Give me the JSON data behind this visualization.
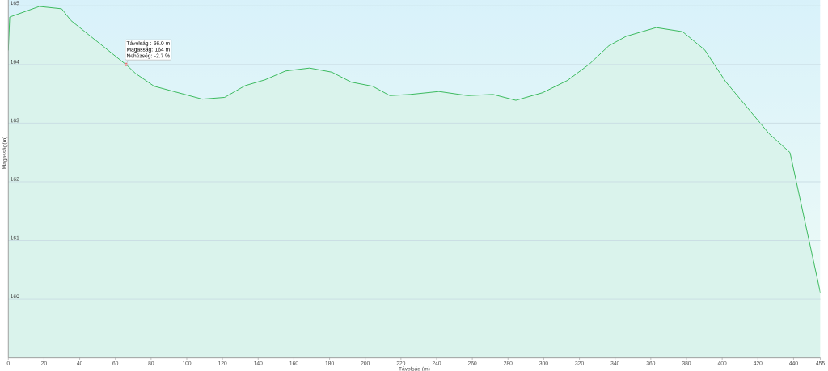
{
  "chart_data": {
    "type": "area",
    "xlabel": "Távolság (m)",
    "ylabel": "Magasság(m)",
    "x": [
      0,
      0.8,
      17.4,
      29.9,
      35.1,
      66.7,
      71.2,
      81.7,
      108.7,
      121.2,
      132.7,
      143.9,
      155.3,
      168.8,
      181.3,
      192.1,
      204.1,
      213.8,
      225.1,
      241.3,
      257.4,
      271.6,
      284.4,
      299.4,
      313.4,
      325.7,
      336.5,
      346.1,
      363.0,
      377.8,
      390.2,
      401.9,
      426.3,
      438.0,
      455
    ],
    "series": [
      {
        "color": "#3cba5e",
        "values": [
          164.24,
          164.81,
          164.99,
          164.95,
          164.75,
          163.98,
          163.85,
          163.63,
          163.41,
          163.44,
          163.64,
          163.74,
          163.89,
          163.94,
          163.87,
          163.7,
          163.63,
          163.47,
          163.49,
          163.54,
          163.47,
          163.49,
          163.39,
          163.52,
          163.73,
          164.01,
          164.32,
          164.48,
          164.63,
          164.56,
          164.25,
          163.71,
          162.82,
          162.5,
          160.11
        ]
      }
    ],
    "xlim": [
      0,
      455
    ],
    "ylim": [
      159,
      165.1
    ],
    "xticks": [
      0,
      20,
      40,
      60,
      80,
      100,
      120,
      140,
      160,
      180,
      200,
      220,
      240,
      260,
      280,
      300,
      320,
      340,
      360,
      380,
      400,
      420,
      440,
      455
    ],
    "yticks": [
      160,
      161,
      162,
      163,
      164,
      165
    ],
    "grid": "y",
    "annotations": [
      "Távolság : 66.0 m",
      "Magasság: 164 m",
      {
        "text": "Nehézség: -2.7 %",
        "x": 66,
        "y": 164
      }
    ]
  }
}
